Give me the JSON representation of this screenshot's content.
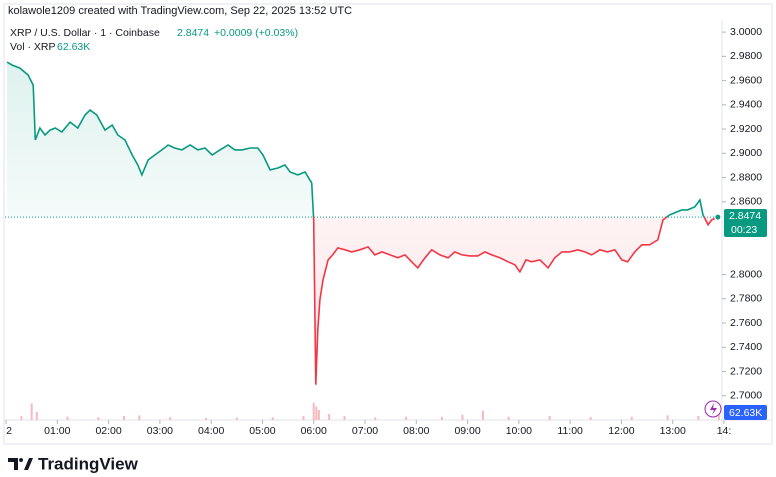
{
  "header": {
    "credit": "kolawole1209 created with TradingView.com, Sep 22, 2025 13:52 UTC",
    "symbol": "XRP / U.S. Dollar · 1 · Coinbase",
    "change": "+0.0009 (+0.03%)",
    "volume_label": "Vol · XRP",
    "volume_value": "62.63K"
  },
  "chart_data": {
    "type": "baseline",
    "base": 2.8474,
    "last_price": 2.8474,
    "countdown": "00:23",
    "up_color": "#089981",
    "down_color": "#f23645",
    "x": [
      0.02,
      0.12,
      0.27,
      0.43,
      0.53,
      0.57,
      0.66,
      0.76,
      0.86,
      0.96,
      1.09,
      1.25,
      1.4,
      1.54,
      1.64,
      1.77,
      1.93,
      2.07,
      2.18,
      2.32,
      2.46,
      2.57,
      2.65,
      2.77,
      2.9,
      3.04,
      3.16,
      3.29,
      3.43,
      3.59,
      3.74,
      3.88,
      4.02,
      4.17,
      4.33,
      4.46,
      4.6,
      4.76,
      4.91,
      5.01,
      5.15,
      5.3,
      5.44,
      5.54,
      5.69,
      5.83,
      5.96,
      6.0,
      6.04,
      6.08,
      6.12,
      6.18,
      6.28,
      6.37,
      6.47,
      6.61,
      6.74,
      6.9,
      7.06,
      7.19,
      7.33,
      7.49,
      7.64,
      7.78,
      7.91,
      8.03,
      8.17,
      8.3,
      8.46,
      8.62,
      8.75,
      8.89,
      9.04,
      9.2,
      9.34,
      9.47,
      9.63,
      9.79,
      9.92,
      10.02,
      10.14,
      10.25,
      10.41,
      10.57,
      10.7,
      10.84,
      10.99,
      11.15,
      11.29,
      11.42,
      11.58,
      11.73,
      11.87,
      12.01,
      12.12,
      12.26,
      12.4,
      12.55,
      12.71,
      12.81,
      12.94,
      13.04,
      13.18,
      13.29,
      13.43,
      13.53,
      13.59,
      13.69,
      13.76,
      13.88
    ],
    "values": [
      2.9753,
      2.9728,
      2.9703,
      2.9646,
      2.9563,
      2.911,
      2.9209,
      2.9151,
      2.9192,
      2.9209,
      2.9176,
      2.9258,
      2.9209,
      2.9316,
      2.9357,
      2.9316,
      2.9192,
      2.9234,
      2.9151,
      2.911,
      2.8986,
      2.8904,
      2.8822,
      2.8945,
      2.8986,
      2.9028,
      2.9069,
      2.9044,
      2.9028,
      2.9069,
      2.9028,
      2.9044,
      2.8986,
      2.9028,
      2.9069,
      2.9028,
      2.9028,
      2.9044,
      2.9044,
      2.8986,
      2.8863,
      2.8879,
      2.8904,
      2.8846,
      2.8822,
      2.8846,
      2.8756,
      2.8451,
      2.7091,
      2.7544,
      2.7792,
      2.7956,
      2.8121,
      2.8162,
      2.822,
      2.8204,
      2.8187,
      2.8204,
      2.8228,
      2.8162,
      2.8187,
      2.8162,
      2.8138,
      2.8162,
      2.8105,
      2.8055,
      2.8138,
      2.8204,
      2.8162,
      2.8138,
      2.8187,
      2.8162,
      2.8154,
      2.8154,
      2.8187,
      2.8162,
      2.8138,
      2.8105,
      2.808,
      2.8022,
      2.8121,
      2.8105,
      2.8121,
      2.8055,
      2.8138,
      2.8187,
      2.8187,
      2.8204,
      2.8187,
      2.8162,
      2.8204,
      2.8187,
      2.8204,
      2.8121,
      2.8105,
      2.8187,
      2.8245,
      2.8245,
      2.8286,
      2.8451,
      2.8492,
      2.8509,
      2.8533,
      2.8533,
      2.8558,
      2.8616,
      2.8492,
      2.841,
      2.8451,
      2.8474
    ],
    "ylim": [
      2.68,
      3.01
    ],
    "xlim": [
      -0.02,
      14
    ],
    "yticks": [
      {
        "value": 3,
        "label": "3.0000"
      },
      {
        "value": 2.98,
        "label": "2.9800"
      },
      {
        "value": 2.96,
        "label": "2.9600"
      },
      {
        "value": 2.94,
        "label": "2.9400"
      },
      {
        "value": 2.92,
        "label": "2.9200"
      },
      {
        "value": 2.9,
        "label": "2.9000"
      },
      {
        "value": 2.88,
        "label": "2.8800"
      },
      {
        "value": 2.86,
        "label": "2.8600"
      },
      {
        "value": 2.8,
        "label": "2.8000"
      },
      {
        "value": 2.78,
        "label": "2.7800"
      },
      {
        "value": 2.76,
        "label": "2.7600"
      },
      {
        "value": 2.74,
        "label": "2.7400"
      },
      {
        "value": 2.72,
        "label": "2.7200"
      },
      {
        "value": 2.7,
        "label": "2.7000"
      }
    ],
    "xticks": [
      {
        "value": 0,
        "label": "2"
      },
      {
        "value": 1,
        "label": "01:00"
      },
      {
        "value": 2,
        "label": "02:00"
      },
      {
        "value": 3,
        "label": "03:00"
      },
      {
        "value": 4,
        "label": "04:00"
      },
      {
        "value": 5,
        "label": "05:00"
      },
      {
        "value": 6,
        "label": "06:00"
      },
      {
        "value": 7,
        "label": "07:00"
      },
      {
        "value": 8,
        "label": "08:00"
      },
      {
        "value": 9,
        "label": "09:00"
      },
      {
        "value": 10,
        "label": "10:00"
      },
      {
        "value": 11,
        "label": "11:00"
      },
      {
        "value": 12,
        "label": "12:00"
      },
      {
        "value": 13,
        "label": "13:00"
      },
      {
        "value": 14,
        "label": "14:"
      }
    ],
    "volume": {
      "color": "#f7b9be",
      "ylim": [
        0,
        300
      ],
      "x": [
        0.3,
        0.5,
        0.6,
        1.2,
        1.8,
        2.3,
        2.6,
        3.2,
        3.9,
        4.5,
        5.2,
        5.8,
        6.0,
        6.05,
        6.1,
        6.3,
        6.6,
        7.2,
        7.8,
        8.5,
        8.9,
        9.3,
        9.8,
        10.6,
        11.4,
        12.2,
        12.9,
        13.5,
        13.9
      ],
      "values": [
        60,
        250,
        120,
        50,
        40,
        60,
        70,
        40,
        30,
        35,
        40,
        60,
        260,
        200,
        150,
        90,
        60,
        40,
        50,
        45,
        80,
        140,
        50,
        60,
        45,
        50,
        70,
        60,
        110
      ]
    }
  }
}
